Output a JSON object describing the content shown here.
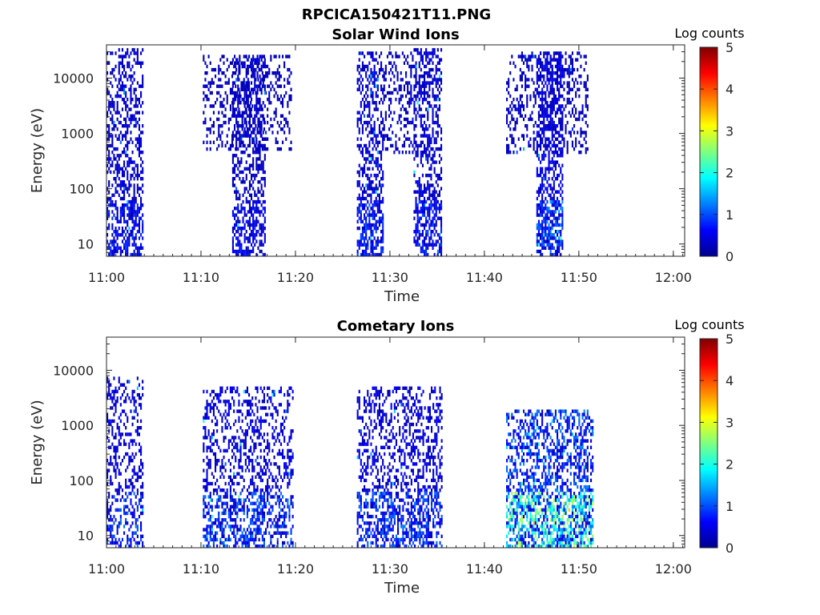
{
  "figure_title": "RPCICA150421T11.PNG",
  "chart_data": [
    {
      "type": "heatmap",
      "title": "Solar Wind Ions",
      "xlabel": "Time",
      "ylabel": "Energy (eV)",
      "x_ticks": [
        "11:00",
        "11:10",
        "11:20",
        "11:30",
        "11:40",
        "11:50",
        "12:00"
      ],
      "x_range_minutes": [
        0,
        61.2
      ],
      "y_scale": "log",
      "y_ticks": [
        "10",
        "100",
        "1000",
        "10000"
      ],
      "y_range": [
        6,
        40000
      ],
      "colorbar": {
        "title": "Log counts",
        "ticks": [
          "0",
          "1",
          "2",
          "3",
          "4",
          "5"
        ],
        "range": [
          0,
          5
        ],
        "colormap": "jet"
      },
      "activity_intervals": [
        {
          "start_min": 0.0,
          "end_min": 3.8,
          "e_low": 6,
          "e_high": 35000,
          "level": 0.35,
          "density": 0.55
        },
        {
          "start_min": 10.2,
          "end_min": 19.5,
          "e_low": 500,
          "e_high": 25000,
          "level": 0.2,
          "density": 0.35
        },
        {
          "start_min": 13.3,
          "end_min": 16.7,
          "e_low": 6,
          "e_high": 25000,
          "level": 0.3,
          "density": 0.55
        },
        {
          "start_min": 26.5,
          "end_min": 29.3,
          "e_low": 6,
          "e_high": 30000,
          "level": 0.4,
          "density": 0.6
        },
        {
          "start_min": 29.3,
          "end_min": 32.5,
          "e_low": 400,
          "e_high": 30000,
          "level": 0.25,
          "density": 0.4
        },
        {
          "start_min": 32.5,
          "end_min": 35.5,
          "e_low": 6,
          "e_high": 35000,
          "level": 0.4,
          "density": 0.6
        },
        {
          "start_min": 42.3,
          "end_min": 51.0,
          "e_low": 400,
          "e_high": 30000,
          "level": 0.25,
          "density": 0.4
        },
        {
          "start_min": 45.5,
          "end_min": 48.2,
          "e_low": 6,
          "e_high": 30000,
          "level": 0.55,
          "density": 0.6
        }
      ]
    },
    {
      "type": "heatmap",
      "title": "Cometary Ions",
      "xlabel": "Time",
      "ylabel": "Energy (eV)",
      "x_ticks": [
        "11:00",
        "11:10",
        "11:20",
        "11:30",
        "11:40",
        "11:50",
        "12:00"
      ],
      "x_range_minutes": [
        0,
        61.2
      ],
      "y_scale": "log",
      "y_ticks": [
        "10",
        "100",
        "1000",
        "10000"
      ],
      "y_range": [
        6,
        40000
      ],
      "colorbar": {
        "title": "Log counts",
        "ticks": [
          "0",
          "1",
          "2",
          "3",
          "4",
          "5"
        ],
        "range": [
          0,
          5
        ],
        "colormap": "jet"
      },
      "activity_intervals": [
        {
          "start_min": 0.0,
          "end_min": 3.8,
          "e_low": 6,
          "e_high": 8000,
          "level": 0.5,
          "density": 0.4
        },
        {
          "start_min": 10.2,
          "end_min": 19.8,
          "e_low": 6,
          "e_high": 5000,
          "level": 0.5,
          "density": 0.45
        },
        {
          "start_min": 26.5,
          "end_min": 35.5,
          "e_low": 6,
          "e_high": 5000,
          "level": 0.5,
          "density": 0.45
        },
        {
          "start_min": 42.3,
          "end_min": 51.5,
          "e_low": 6,
          "e_high": 2000,
          "level": 1.2,
          "density": 0.6
        }
      ]
    }
  ]
}
